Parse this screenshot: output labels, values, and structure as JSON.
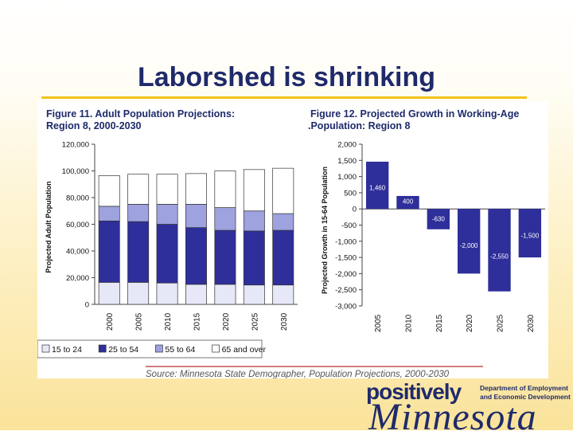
{
  "slide": {
    "title": "Laborshed is shrinking",
    "source": "Source: Minnesota State Demographer, Population Projections, 2000-2030"
  },
  "logo": {
    "word1": "positively",
    "word2": "Minnesota",
    "dept_line1": "Department of Employment",
    "dept_line2": "and Economic Development"
  },
  "colors": {
    "title": "#1f2a6b",
    "rule": "#f3c318",
    "chart_title": "#1f2a6b",
    "bar_navy": "#2e2f9a",
    "bar_light": "#9ea2df",
    "bar_pale": "#e6e8f8"
  },
  "chart_data": [
    {
      "type": "bar",
      "stacked": true,
      "title_lines": [
        "Figure 11. Adult Population Projections:",
        "Region 8, 2000-2030"
      ],
      "xlabel": "",
      "ylabel": "Projected Adult Population",
      "ylim": [
        0,
        120000
      ],
      "yticks": [
        0,
        20000,
        40000,
        60000,
        80000,
        100000,
        120000
      ],
      "ytick_labels": [
        "0",
        "20,000",
        "40,000",
        "60,000",
        "80,000",
        "100,000",
        "120,000"
      ],
      "categories": [
        "2000",
        "2005",
        "2010",
        "2015",
        "2020",
        "2025",
        "2030"
      ],
      "series": [
        {
          "name": "15 to 24",
          "color": "#e6e8f8",
          "values": [
            16500,
            16500,
            16000,
            15000,
            15000,
            14500,
            14500
          ]
        },
        {
          "name": "25 to 54",
          "color": "#2e2f9a",
          "values": [
            46000,
            45500,
            44000,
            42500,
            40500,
            40500,
            41000
          ]
        },
        {
          "name": "55 to 64",
          "color": "#9ea2df",
          "values": [
            11000,
            13000,
            15000,
            17500,
            17000,
            15000,
            12500
          ]
        },
        {
          "name": "65 and over",
          "color": "#ffffff",
          "values": [
            23000,
            22500,
            22500,
            23000,
            27500,
            31000,
            34000
          ]
        }
      ],
      "legend_position": "bottom",
      "grid": false
    },
    {
      "type": "bar",
      "title_lines": [
        "Figure 12. Projected Growth in Working-Age",
        ".Population: Region 8"
      ],
      "xlabel": "",
      "ylabel": "Projected Growth in 15-64 Population",
      "ylim": [
        -3000,
        2000
      ],
      "yticks": [
        2000,
        1500,
        1000,
        500,
        0,
        -500,
        -1000,
        -1500,
        -2000,
        -2500,
        -3000
      ],
      "ytick_labels": [
        "2,000",
        "1,500",
        "1,000",
        "500",
        "0",
        "-500",
        "-1,000",
        "-1,500",
        "-2,000",
        "-2,500",
        "-3,000"
      ],
      "categories": [
        "2005",
        "2010",
        "2015",
        "2020",
        "2025",
        "2030"
      ],
      "values": [
        1460,
        400,
        -630,
        -2000,
        -2550,
        -1500
      ],
      "data_labels": [
        "1,460",
        "400",
        "-630",
        "-2,000",
        "-2,550",
        "-1,500"
      ],
      "color": "#2e2f9a",
      "grid": false
    }
  ]
}
